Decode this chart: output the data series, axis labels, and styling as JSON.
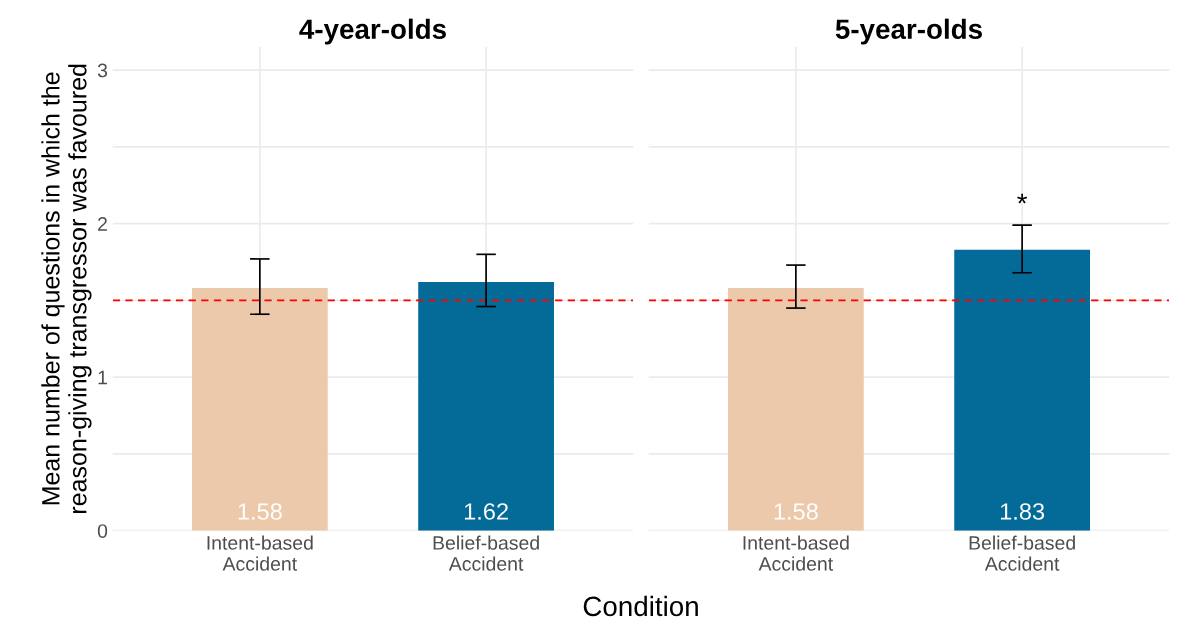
{
  "chart_data": [
    {
      "type": "bar",
      "title": "4-year-olds",
      "xlabel": "Condition",
      "ylabel": "Mean number of questions in which the\nreason-giving transgressor was favoured",
      "categories": [
        "Intent-based\nAccident",
        "Belief-based\nAccident"
      ],
      "values": [
        1.58,
        1.62
      ],
      "colors": [
        "#ecc9aa",
        "#046b99"
      ],
      "errors": [
        [
          1.41,
          1.77
        ],
        [
          1.46,
          1.8
        ]
      ],
      "data_labels": true,
      "ylim": [
        0,
        3.15
      ],
      "yticks": [
        0,
        {
          "value": 0.5,
          "label": null
        },
        1,
        {
          "value": 1.5,
          "label": null
        },
        2,
        {
          "value": 2.5,
          "label": null
        },
        3
      ],
      "ref_lines": [
        {
          "axis": "y",
          "value": 1.5,
          "color": "#ff0000",
          "line_style": "dashed"
        }
      ],
      "grid": true
    },
    {
      "type": "bar",
      "title": "5-year-olds",
      "categories": [
        "Intent-based\nAccident",
        "Belief-based\nAccident"
      ],
      "values": [
        1.58,
        1.83
      ],
      "colors": [
        "#ecc9aa",
        "#046b99"
      ],
      "errors": [
        [
          1.45,
          1.73
        ],
        [
          1.68,
          1.99
        ]
      ],
      "data_labels": true,
      "ylim": [
        0,
        3.15
      ],
      "yticks": [
        0,
        {
          "value": 0.5,
          "label": null
        },
        1,
        {
          "value": 1.5,
          "label": null
        },
        2,
        {
          "value": 2.5,
          "label": null
        },
        3
      ],
      "tick_labels": "x",
      "ref_lines": [
        {
          "axis": "y",
          "value": 1.5,
          "color": "#ff0000",
          "line_style": "dashed"
        }
      ],
      "grid": true,
      "annotations": [
        "*"
      ]
    }
  ]
}
